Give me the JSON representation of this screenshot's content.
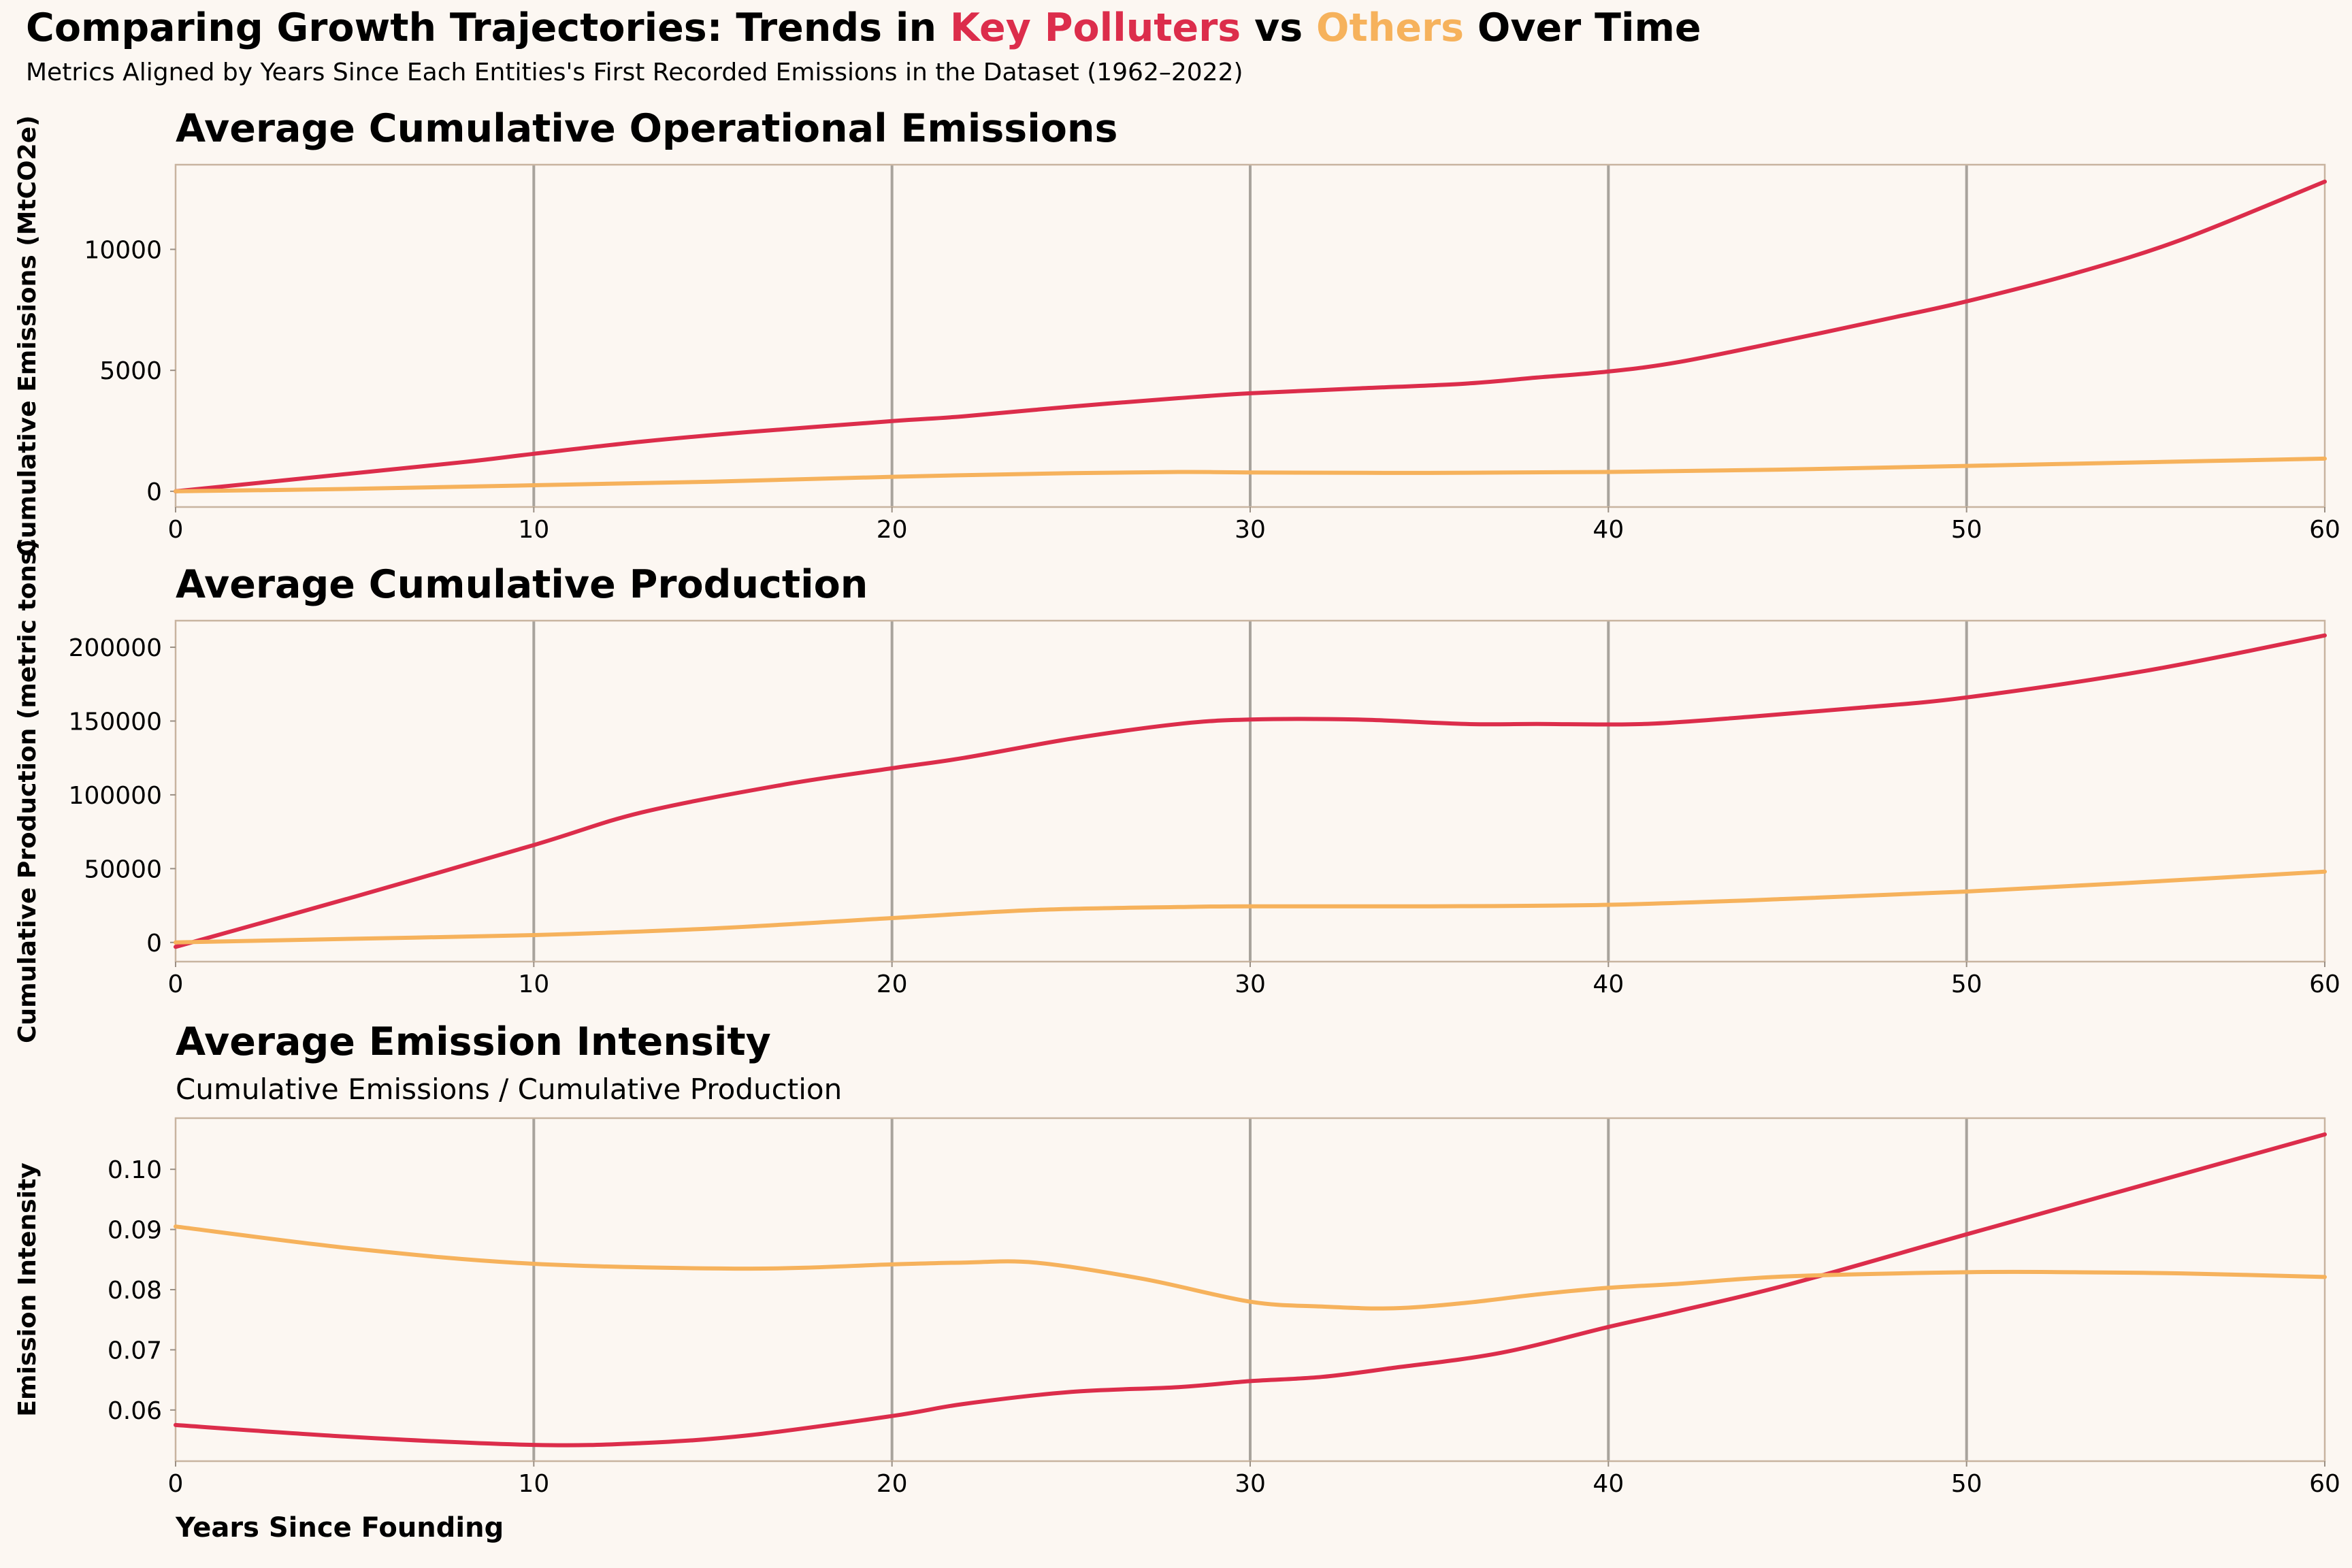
{
  "title": {
    "part1": "Comparing Growth Trajectories: Trends in ",
    "key_polluters": "Key Polluters",
    "vs": " vs ",
    "others": "Others",
    "part2": " Over Time"
  },
  "subtitle": "Metrics Aligned by Years Since Each Entities's First Recorded Emissions in the Dataset (1962–2022)",
  "colors": {
    "key_polluters": "#dc2d4b",
    "others": "#f6b25c",
    "background": "#fcf7f2"
  },
  "xaxis_label": "Years Since Founding",
  "chart_data": [
    {
      "type": "line",
      "title": "Average Cumulative Operational Emissions",
      "subtitle": "",
      "xlabel": "",
      "ylabel": "Cumulative Emissions (MtCO2e)",
      "xlim": [
        0,
        60
      ],
      "ylim": [
        -650,
        13500
      ],
      "xticks": [
        0,
        10,
        20,
        30,
        40,
        50,
        60
      ],
      "yticks": [
        0,
        5000,
        10000
      ],
      "grid": "vertical",
      "series": [
        {
          "key": "key_polluters",
          "x": [
            0,
            4,
            8,
            10,
            13,
            16,
            20,
            22,
            25,
            28,
            30,
            33,
            36,
            38,
            40,
            42,
            45,
            48,
            50,
            53,
            56,
            60
          ],
          "values": [
            0,
            600,
            1200,
            1550,
            2050,
            2450,
            2900,
            3100,
            3500,
            3850,
            4050,
            4250,
            4450,
            4700,
            4950,
            5350,
            6250,
            7200,
            7850,
            9000,
            10400,
            12800
          ]
        },
        {
          "key": "others",
          "x": [
            0,
            5,
            10,
            15,
            20,
            25,
            28,
            30,
            35,
            40,
            45,
            50,
            55,
            60
          ],
          "values": [
            0,
            100,
            250,
            400,
            600,
            750,
            800,
            780,
            760,
            800,
            900,
            1050,
            1200,
            1350
          ]
        }
      ]
    },
    {
      "type": "line",
      "title": "Average Cumulative Production",
      "subtitle": "",
      "xlabel": "",
      "ylabel": "Cumulative Production (metric tons)",
      "xlim": [
        0,
        60
      ],
      "ylim": [
        -13000,
        218000
      ],
      "xticks": [
        0,
        10,
        20,
        30,
        40,
        50,
        60
      ],
      "yticks": [
        0,
        50000,
        100000,
        150000,
        200000
      ],
      "grid": "vertical",
      "series": [
        {
          "key": "key_polluters",
          "x": [
            0,
            5,
            10,
            13,
            17,
            20,
            22,
            25,
            28,
            30,
            33,
            36,
            38,
            41,
            44,
            47,
            50,
            55,
            60
          ],
          "values": [
            -3000,
            31000,
            66000,
            88000,
            107000,
            118000,
            125000,
            138000,
            148000,
            151000,
            151000,
            148000,
            148000,
            148000,
            153000,
            159000,
            166000,
            184000,
            208000
          ]
        },
        {
          "key": "others",
          "x": [
            0,
            5,
            10,
            15,
            20,
            24,
            28,
            30,
            35,
            40,
            45,
            50,
            55,
            60
          ],
          "values": [
            0,
            2500,
            5000,
            9500,
            16500,
            22000,
            24000,
            24500,
            24500,
            25500,
            29500,
            34500,
            41000,
            48000
          ]
        }
      ]
    },
    {
      "type": "line",
      "title": "Average Emission Intensity",
      "subtitle": "Cumulative Emissions / Cumulative Production",
      "xlabel": "Years Since Founding",
      "ylabel": "Emission Intensity",
      "xlim": [
        0,
        60
      ],
      "ylim": [
        0.0515,
        0.1085
      ],
      "xticks": [
        0,
        10,
        20,
        30,
        40,
        50,
        60
      ],
      "yticks": [
        0.06,
        0.07,
        0.08,
        0.09,
        0.1
      ],
      "grid": "vertical",
      "series": [
        {
          "key": "key_polluters",
          "x": [
            0,
            5,
            10,
            13,
            16,
            20,
            22,
            25,
            28,
            30,
            32,
            34,
            37,
            40,
            42,
            45,
            50,
            55,
            60
          ],
          "values": [
            0.0575,
            0.0555,
            0.0542,
            0.0545,
            0.0558,
            0.059,
            0.061,
            0.063,
            0.0638,
            0.0648,
            0.0655,
            0.067,
            0.0695,
            0.0738,
            0.0765,
            0.0808,
            0.0892,
            0.0975,
            0.1058
          ]
        },
        {
          "key": "others",
          "x": [
            0,
            5,
            10,
            16,
            20,
            22,
            24,
            27,
            30,
            32,
            34,
            36,
            38,
            40,
            42,
            45,
            50,
            53,
            56,
            60
          ],
          "values": [
            0.0905,
            0.0868,
            0.0843,
            0.0835,
            0.0842,
            0.0845,
            0.0845,
            0.0818,
            0.078,
            0.0772,
            0.0769,
            0.0778,
            0.0792,
            0.0803,
            0.081,
            0.0822,
            0.0829,
            0.0829,
            0.0827,
            0.0821
          ]
        }
      ]
    }
  ]
}
